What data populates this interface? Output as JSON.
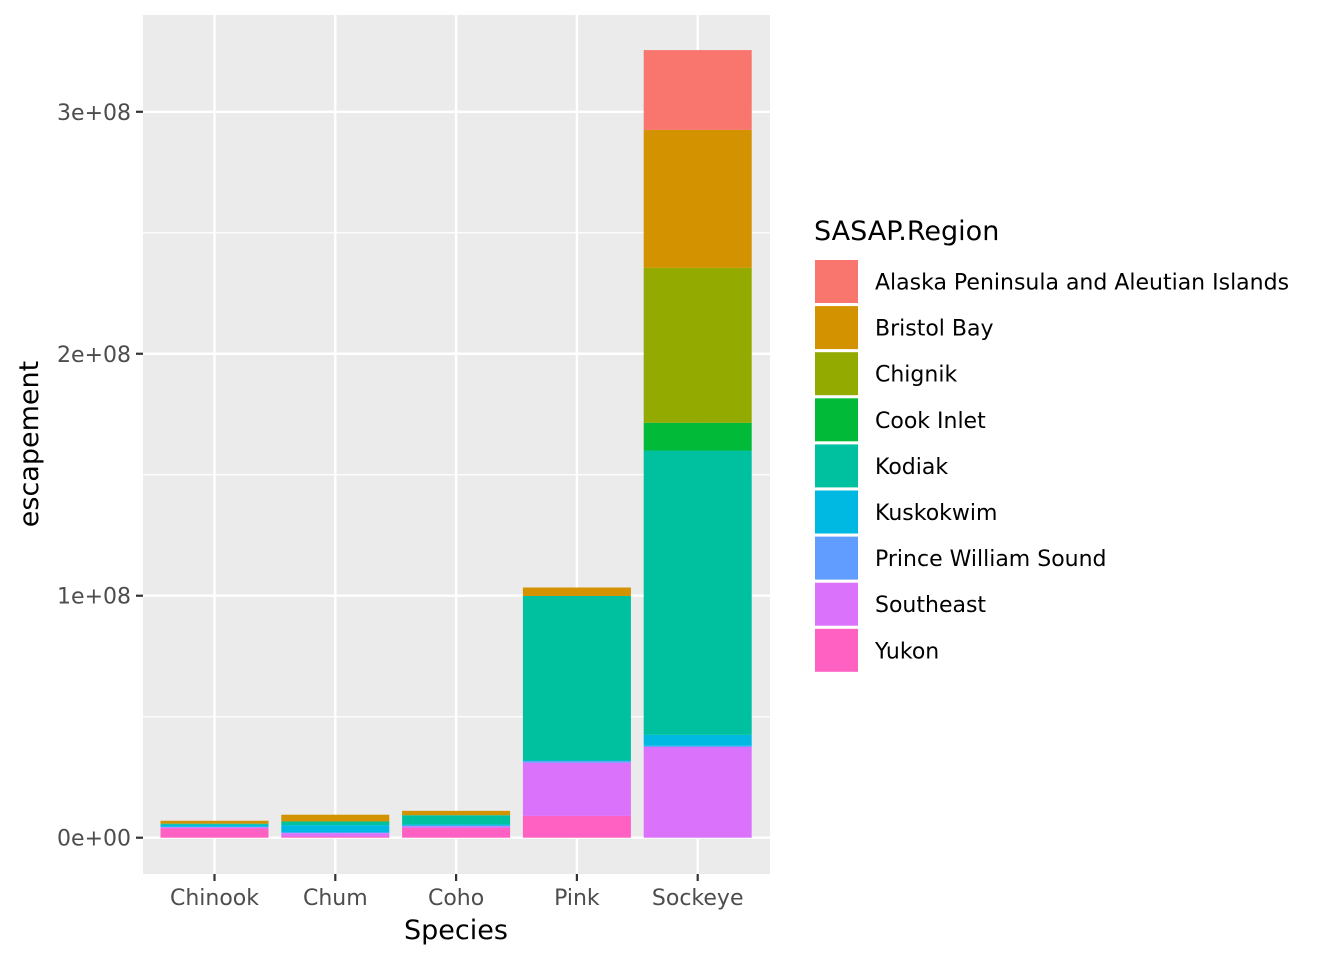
{
  "chart_data": {
    "type": "bar",
    "stacked": true,
    "xlabel": "Species",
    "ylabel": "escapement",
    "categories": [
      "Chinook",
      "Chum",
      "Coho",
      "Pink",
      "Sockeye"
    ],
    "ylim": [
      -15000000,
      340000000
    ],
    "yticks": [
      {
        "value": 0,
        "label": "0e+00"
      },
      {
        "value": 100000000,
        "label": "1e+08"
      },
      {
        "value": 200000000,
        "label": "2e+08"
      },
      {
        "value": 300000000,
        "label": "3e+08"
      }
    ],
    "y_minor_ticks": [
      50000000,
      150000000,
      250000000
    ],
    "legend": {
      "title": "SASAP.Region",
      "position": "right"
    },
    "series": [
      {
        "name": "Alaska Peninsula and Aleutian Islands",
        "color": "#F8766D",
        "values": [
          0,
          0,
          0,
          0,
          33000000
        ]
      },
      {
        "name": "Bristol Bay",
        "color": "#D39200",
        "values": [
          1200000,
          2800000,
          1800000,
          3500000,
          57000000
        ]
      },
      {
        "name": "Chignik",
        "color": "#93AA00",
        "values": [
          0,
          0,
          0,
          0,
          64000000
        ]
      },
      {
        "name": "Cook Inlet",
        "color": "#00BA38",
        "values": [
          0,
          0,
          0,
          0,
          11500000
        ]
      },
      {
        "name": "Kodiak",
        "color": "#00C19F",
        "values": [
          500000,
          1500000,
          3800000,
          68000000,
          117500000
        ]
      },
      {
        "name": "Kuskokwim",
        "color": "#00B9E3",
        "values": [
          800000,
          3000000,
          500000,
          300000,
          4500000
        ]
      },
      {
        "name": "Prince William Sound",
        "color": "#619CFF",
        "values": [
          200000,
          300000,
          300000,
          600000,
          500000
        ]
      },
      {
        "name": "Southeast",
        "color": "#DB72FB",
        "values": [
          500000,
          1400000,
          700000,
          22000000,
          37500000
        ]
      },
      {
        "name": "Yukon",
        "color": "#FF61C3",
        "values": [
          3800000,
          500000,
          4000000,
          9000000,
          0
        ]
      }
    ]
  }
}
